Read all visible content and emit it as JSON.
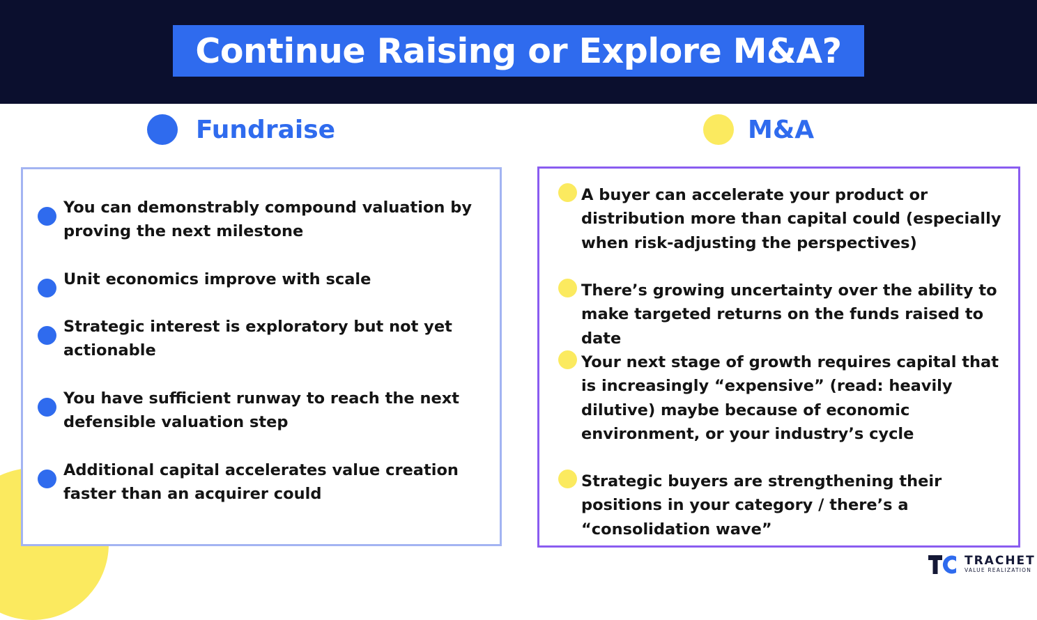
{
  "title": "Continue Raising or Explore M&A?",
  "colors": {
    "navy": "#0b0f2e",
    "blue": "#2f6bee",
    "yellow": "#fbea5f",
    "purple": "#8a5cf0",
    "light_blue_border": "#a3b4f2"
  },
  "fundraise": {
    "heading": "Fundraise",
    "items": [
      "You can demonstrably compound valuation by proving the next milestone",
      "Unit economics improve with scale",
      "Strategic interest is exploratory but not yet actionable",
      "You have sufficient runway to reach the next defensible valuation step",
      " Additional capital accelerates value creation faster than an acquirer could"
    ]
  },
  "ma": {
    "heading": "M&A",
    "items": [
      "A buyer can accelerate your product or distribution more than capital could (especially when risk-adjusting the perspectives)",
      "There’s growing uncertainty over the ability to make targeted returns on the funds raised to date",
      "Your next stage of growth requires capital that is increasingly “expensive” (read: heavily dilutive) maybe because of economic environment, or your industry’s cycle",
      "Strategic buyers are strengthening their positions in your category / there’s a “consolidation wave”"
    ]
  },
  "logo": {
    "name": "TRACHET",
    "tagline": "VALUE REALIZATION"
  }
}
